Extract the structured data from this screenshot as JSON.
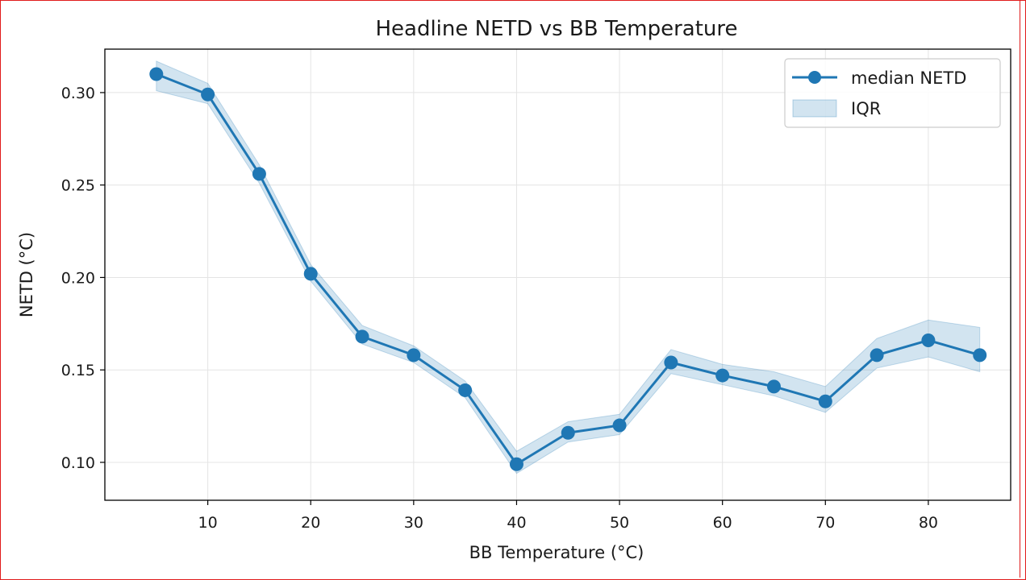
{
  "colors": {
    "series": "#1f77b4",
    "band": "#1f77b4",
    "grid": "#e4e4e4",
    "axis": "#000000",
    "frame_border": "#e01b1b"
  },
  "chart_data": {
    "type": "line",
    "title": "Headline NETD vs BB Temperature",
    "xlabel": "BB Temperature (°C)",
    "ylabel": "NETD (°C)",
    "xlim": [
      0,
      88
    ],
    "ylim": [
      0.0795,
      0.3235
    ],
    "x_ticks": [
      10,
      20,
      30,
      40,
      50,
      60,
      70,
      80
    ],
    "y_ticks": [
      0.1,
      0.15,
      0.2,
      0.25,
      0.3
    ],
    "x_tick_labels": [
      "10",
      "20",
      "30",
      "40",
      "50",
      "60",
      "70",
      "80"
    ],
    "y_tick_labels": [
      "0.10",
      "0.15",
      "0.20",
      "0.25",
      "0.30"
    ],
    "grid": true,
    "legend_position": "top-right",
    "x": [
      5,
      10,
      15,
      20,
      25,
      30,
      35,
      40,
      45,
      50,
      55,
      60,
      65,
      70,
      75,
      80,
      85
    ],
    "series": [
      {
        "name": "median NETD",
        "values": [
          0.31,
          0.299,
          0.256,
          0.202,
          0.168,
          0.158,
          0.139,
          0.099,
          0.116,
          0.12,
          0.154,
          0.147,
          0.141,
          0.133,
          0.158,
          0.166,
          0.158
        ]
      }
    ],
    "band": {
      "name": "IQR",
      "lower": [
        0.301,
        0.294,
        0.251,
        0.198,
        0.164,
        0.154,
        0.135,
        0.094,
        0.111,
        0.115,
        0.148,
        0.142,
        0.136,
        0.127,
        0.151,
        0.157,
        0.149
      ],
      "upper": [
        0.317,
        0.305,
        0.261,
        0.207,
        0.174,
        0.163,
        0.144,
        0.106,
        0.122,
        0.126,
        0.161,
        0.153,
        0.149,
        0.141,
        0.167,
        0.177,
        0.173
      ]
    }
  }
}
